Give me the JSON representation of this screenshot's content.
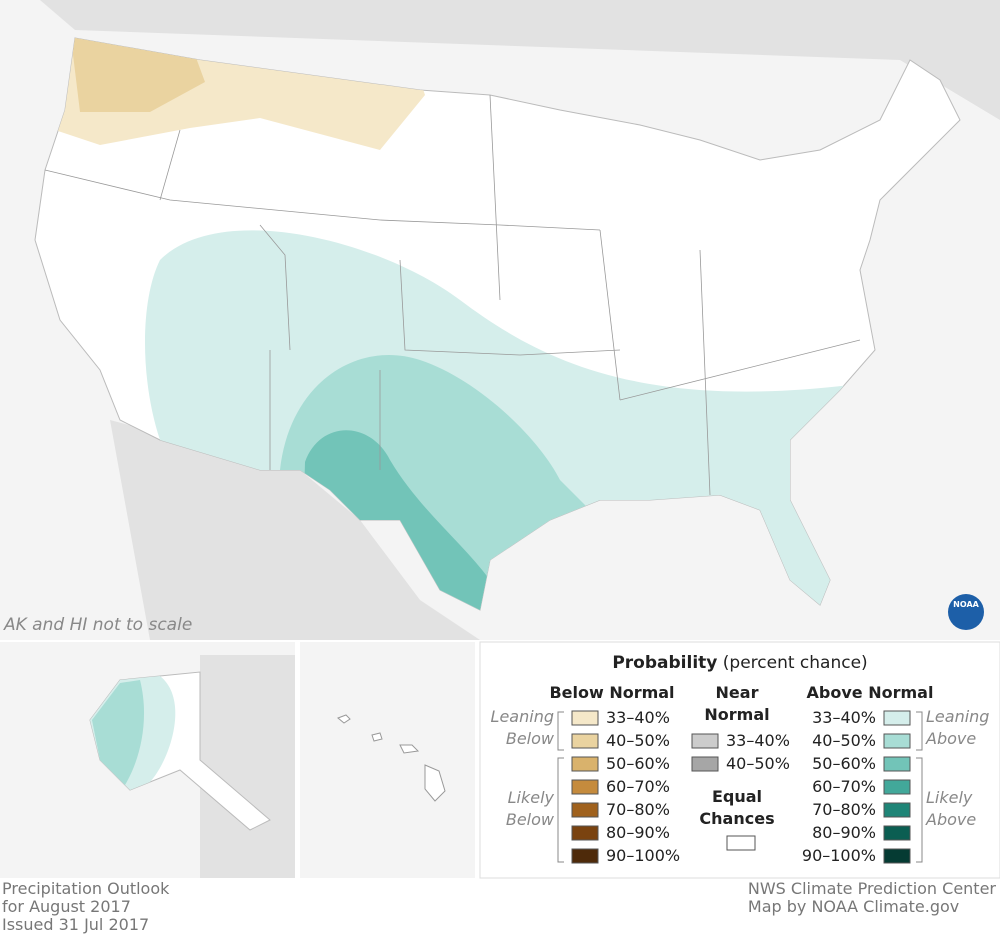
{
  "map_note": "AK and HI not to scale",
  "logo": "NOAA",
  "legend": {
    "title": "Probability",
    "subtitle": "(percent chance)",
    "below": {
      "heading": "Below Normal",
      "leaning": "Leaning Below",
      "likely": "Likely Below",
      "labels": [
        "33–40%",
        "40–50%",
        "50–60%",
        "60–70%",
        "70–80%",
        "80–90%",
        "90–100%"
      ],
      "colors": [
        "#f5e8c9",
        "#ead3a0",
        "#d9b26c",
        "#c58b3d",
        "#a0621e",
        "#7a4310",
        "#4e2a0a"
      ]
    },
    "near": {
      "heading": "Near Normal",
      "labels": [
        "33–40%",
        "40–50%"
      ],
      "colors": [
        "#cccccc",
        "#a6a6a6"
      ],
      "equal": "Equal Chances",
      "equal_color": "#ffffff"
    },
    "above": {
      "heading": "Above Normal",
      "leaning": "Leaning Above",
      "likely": "Likely Above",
      "labels": [
        "33–40%",
        "40–50%",
        "50–60%",
        "60–70%",
        "70–80%",
        "80–90%",
        "90–100%"
      ],
      "colors": [
        "#d5eeeb",
        "#a8ddd5",
        "#72c4b8",
        "#42a89a",
        "#1f8577",
        "#0b5e52",
        "#053b33"
      ]
    }
  },
  "footer": {
    "left": [
      "Precipitation Outlook",
      "for August 2017",
      "Issued 31 Jul 2017"
    ],
    "right": [
      "NWS Climate Prediction Center",
      "Map by NOAA Climate.gov"
    ]
  }
}
